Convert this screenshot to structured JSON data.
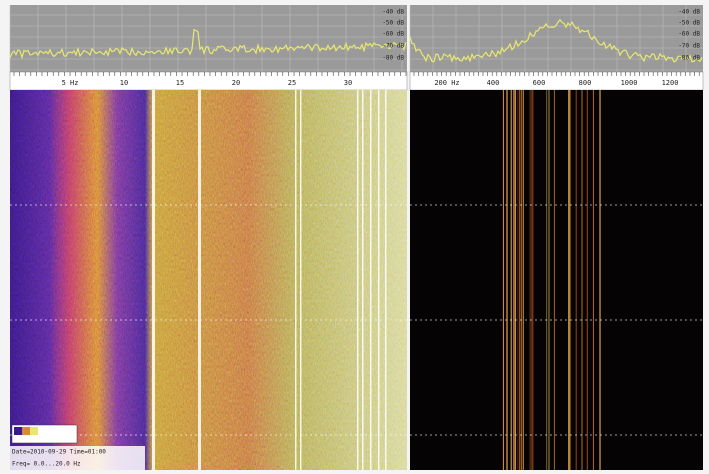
{
  "left_panel": {
    "freq_labels": [
      "5 Hz",
      "10",
      "15",
      "20",
      "25",
      "30"
    ],
    "level_labels": [
      "-40 dB",
      "-50 dB",
      "-60 dB",
      "-70 dB",
      "-80 dB"
    ],
    "info": [
      "Date=2010-09-29 Time=01:00",
      "Freq= 0.0...20.0 Hz"
    ]
  },
  "right_panel": {
    "freq_labels": [
      "200 Hz",
      "400",
      "600",
      "800",
      "1000",
      "1200"
    ],
    "level_labels": [
      "-40 dB",
      "-50 dB",
      "-60 dB",
      "-70 dB",
      "-80 dB"
    ]
  }
}
